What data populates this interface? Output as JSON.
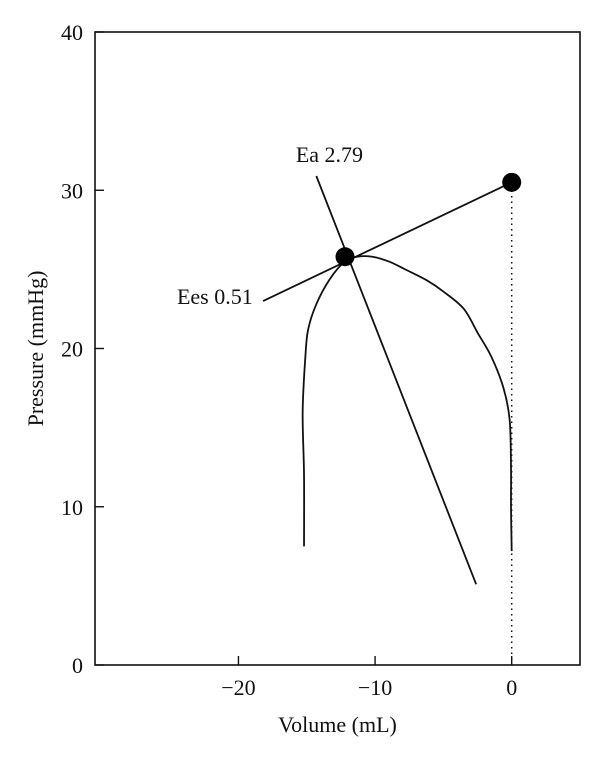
{
  "chart_data": {
    "type": "line",
    "title": "",
    "xlabel": "Volume (mL)",
    "ylabel": "Pressure (mmHg)",
    "xlim": [
      -30.5,
      5
    ],
    "ylim": [
      0,
      40
    ],
    "xticks": [
      -20,
      -10,
      0
    ],
    "xtick_labels": [
      "−20",
      "−10",
      "0"
    ],
    "yticks": [
      0,
      10,
      20,
      30,
      40
    ],
    "ytick_labels": [
      "0",
      "10",
      "20",
      "30",
      "40"
    ],
    "grid": false,
    "series": [
      {
        "kind": "pv-loop",
        "x": [
          -15.2,
          -15.2,
          -15.3,
          -15.1,
          -14.9,
          -14.3,
          -13.3,
          -12.2,
          -11.3,
          -10.2,
          -9.0,
          -7.8,
          -6.2,
          -5.0,
          -3.5,
          -2.5,
          -1.5,
          -0.6,
          -0.15,
          -0.05,
          -0.05,
          0.0
        ],
        "y": [
          7.5,
          12.0,
          16.0,
          19.5,
          21.2,
          22.8,
          24.4,
          25.5,
          25.8,
          25.8,
          25.5,
          25.0,
          24.3,
          23.6,
          22.5,
          21.0,
          19.5,
          17.5,
          15.5,
          12.5,
          10.0,
          7.2
        ]
      },
      {
        "name": "Ea",
        "kind": "line",
        "x": [
          -14.3,
          -2.6
        ],
        "y": [
          30.9,
          5.1
        ]
      },
      {
        "name": "Ees",
        "kind": "line",
        "x": [
          -18.2,
          0
        ],
        "y": [
          23.0,
          30.5
        ]
      },
      {
        "kind": "points",
        "x": [
          -12.2,
          0
        ],
        "y": [
          25.8,
          30.5
        ]
      },
      {
        "kind": "reference-line",
        "x": [
          0,
          0
        ],
        "y": [
          0,
          30.5
        ]
      }
    ],
    "annotations": [
      {
        "text": "Ea 2.79",
        "x": -15.8,
        "y": 31.8
      },
      {
        "text": "Ees 0.51",
        "x": -24.5,
        "y": 22.8
      }
    ]
  }
}
